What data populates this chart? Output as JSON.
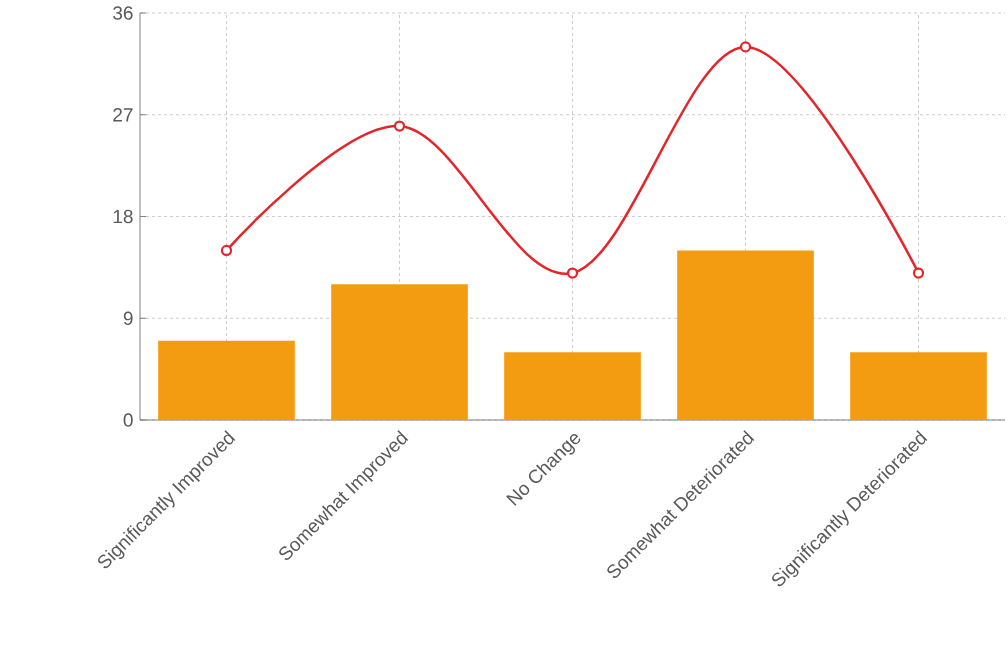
{
  "chart_data": {
    "type": "bar",
    "categories": [
      "Significantly Improved",
      "Somewhat Improved",
      "No Change",
      "Somewhat Deteriorated",
      "Significantly Deteriorated"
    ],
    "series": [
      {
        "color": "#f39c12",
        "values": [
          7,
          12,
          6,
          15,
          6
        ]
      },
      {
        "type": "line",
        "color": "#e3262a",
        "values": [
          15,
          26,
          13,
          33,
          13
        ],
        "marker": "circle",
        "line_style": "solid"
      }
    ],
    "ylim": [
      0,
      36
    ],
    "yticks": [
      0,
      9,
      18,
      27,
      36
    ],
    "grid": true,
    "legend": false
  }
}
